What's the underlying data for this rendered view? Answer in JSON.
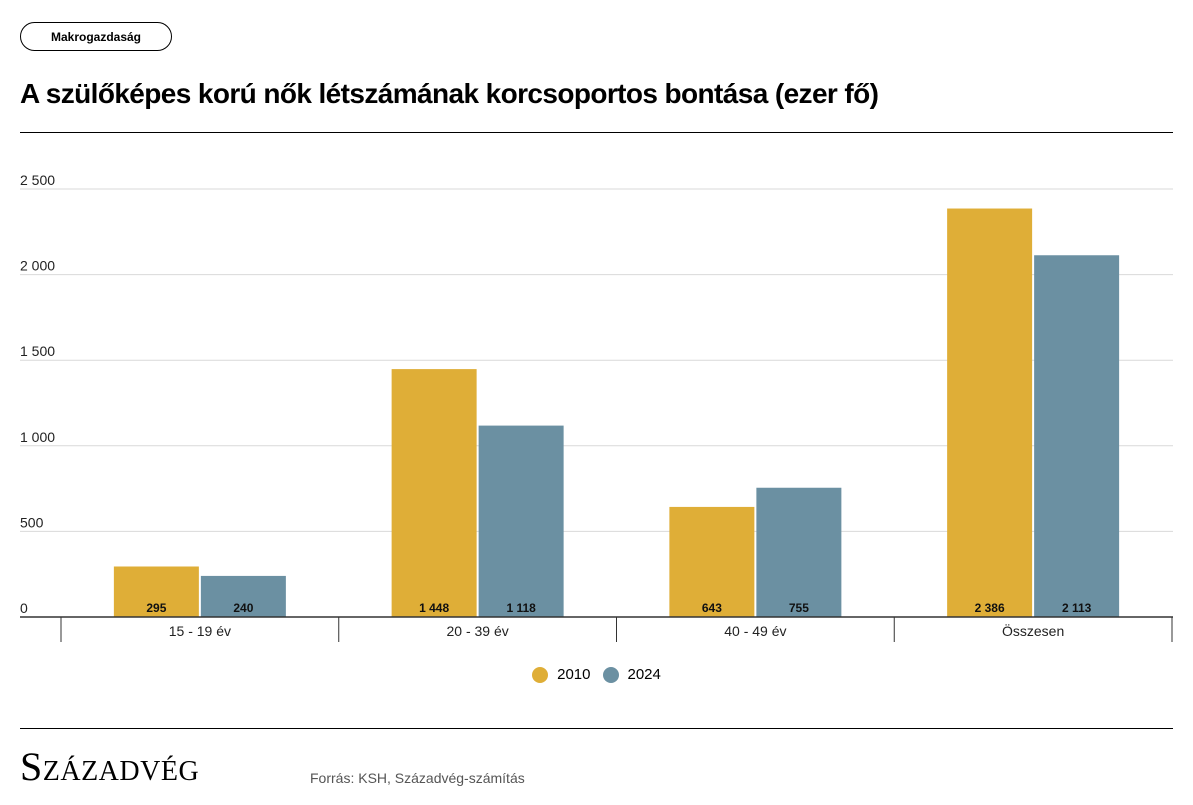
{
  "header": {
    "tag_label": "Makrogazdaság",
    "title": "A szülőképes korú nők létszámának korcsoportos bontása (ezer fő)"
  },
  "footer": {
    "brand": "Századvég",
    "source": "Forrás: KSH, Századvég-számítás"
  },
  "colors": {
    "series_2010": "#dfae37",
    "series_2024": "#6b90a2"
  },
  "chart_data": {
    "type": "bar",
    "categories": [
      "15 - 19 év",
      "20 - 39 év",
      "40 - 49 év",
      "Összesen"
    ],
    "series": [
      {
        "name": "2010",
        "values": [
          295,
          1448,
          643,
          2386
        ],
        "labels": [
          "295",
          "1 448",
          "643",
          "2 386"
        ]
      },
      {
        "name": "2024",
        "values": [
          240,
          1118,
          755,
          2113
        ],
        "labels": [
          "240",
          "1 118",
          "755",
          "2 113"
        ]
      }
    ],
    "yticks": [
      0,
      500,
      1000,
      1500,
      2000,
      2500
    ],
    "ytick_labels": [
      "0",
      "500",
      "1 000",
      "1 500",
      "2 000",
      "2 500"
    ],
    "ylim": [
      0,
      2500
    ],
    "grid": true,
    "legend_position": "bottom-center"
  }
}
